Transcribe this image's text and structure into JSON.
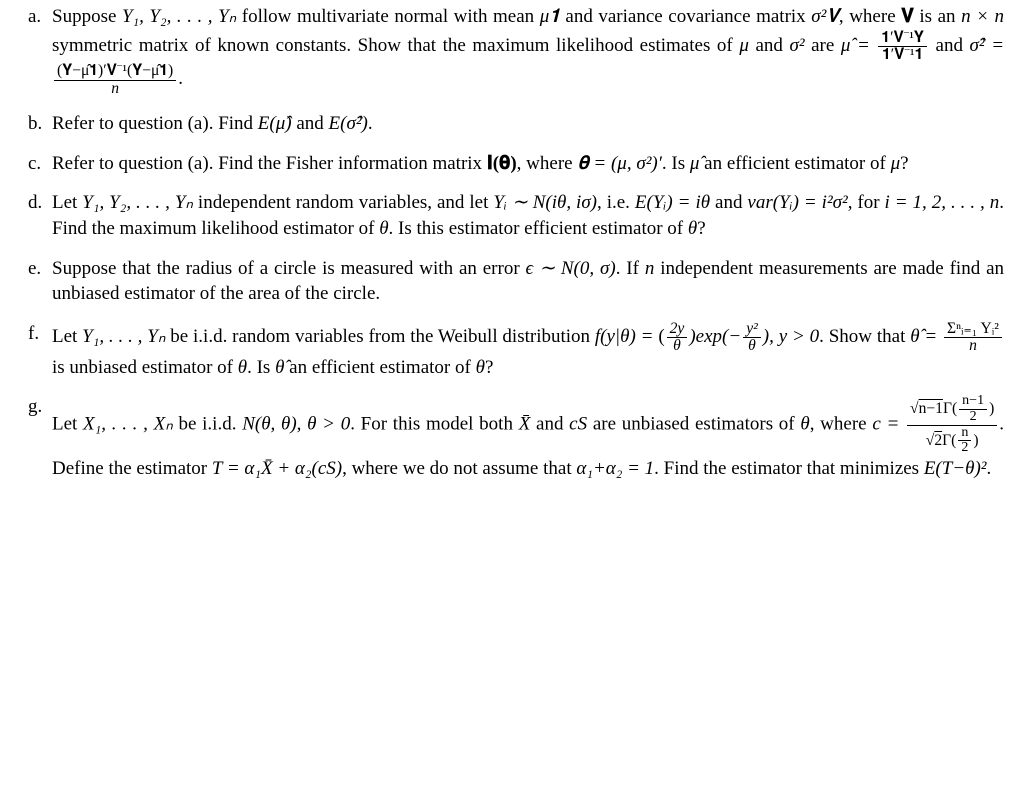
{
  "items": {
    "a": {
      "label": "a.",
      "pre1": "Suppose ",
      "m1": "Y₁, Y₂, . . . , Yₙ",
      "txt1": " follow multivariate normal with mean ",
      "m2": "μ𝟏",
      "txt2": " and variance covariance matrix ",
      "m3": "σ²𝐕",
      "txt3": ", where ",
      "m4": "𝐕",
      "txt4": " is an ",
      "m5": "n × n",
      "txt5": " symmetric matrix of known constants. Show that the maximum likelihood estimates of ",
      "m6": "μ",
      "txt6": " and ",
      "m7": "σ²",
      "txt7": " are ",
      "m8": "μ̂ = ",
      "f1num": "𝟏′𝐕⁻¹𝐘",
      "f1den": "𝟏′𝐕⁻¹𝟏",
      "txt8": " and ",
      "m9": "σ̂² = ",
      "f2num": "(𝐘−μ̂𝟏)′𝐕⁻¹(𝐘−μ̂𝟏)",
      "f2den": "n",
      "txt9": "."
    },
    "b": {
      "label": "b.",
      "txt1": "Refer to question (a). Find ",
      "m1": "E(μ̂)",
      "txt2": " and ",
      "m2": "E(σ̂²)",
      "txt3": "."
    },
    "c": {
      "label": "c.",
      "txt1": "Refer to question (a). Find the Fisher information matrix ",
      "m1": "𝐈(𝛉)",
      "txt2": ", where ",
      "m2": "𝛉 = (μ, σ²)′",
      "txt3": ". Is ",
      "m3": "μ̂",
      "txt4": " an efficient estimator of ",
      "m4": "μ",
      "txt5": "?"
    },
    "d": {
      "label": "d.",
      "txt1": "Let ",
      "m1": "Y₁, Y₂, . . . , Yₙ",
      "txt2": " independent random variables, and let ",
      "m2": "Yᵢ ∼ N(iθ, iσ)",
      "txt3": ", i.e. ",
      "m3": "E(Yᵢ) = iθ",
      "txt4": " and ",
      "m4": "var(Yᵢ) = i²σ²",
      "txt5": ", for ",
      "m5": "i = 1, 2, . . . , n",
      "txt6": ". Find the maximum likelihood estimator of ",
      "m6": "θ",
      "txt7": ". Is this estimator efficient estimator of ",
      "m7": "θ",
      "txt8": "?"
    },
    "e": {
      "label": "e.",
      "txt1": "Suppose that the radius of a circle is measured with an error ",
      "m1": "ϵ ∼ N(0, σ)",
      "txt2": ". If ",
      "m2": "n",
      "txt3": " independent measurements are made find an unbiased estimator of the area of the circle."
    },
    "f": {
      "label": "f.",
      "txt1": "Let ",
      "m1": "Y₁, . . . , Yₙ",
      "txt2": " be i.i.d.  random variables from the Weibull distribution ",
      "m2": "f(y|θ) = ",
      "f1a": "(",
      "f1num": "2y",
      "f1den": "θ",
      "f1b": ")exp(−",
      "f2num": "y²",
      "f2den": "θ",
      "f1c": "), y > 0",
      "txt3": ". Show that ",
      "m3": "θ̂ = ",
      "f3num": "Σⁿᵢ₌₁ Yᵢ²",
      "f3den": "n",
      "txt4": " is unbiased estimator of ",
      "m4": "θ",
      "txt5": ". Is ",
      "m5": "θ̂",
      "txt6": " an efficient estimator of ",
      "m6": "θ",
      "txt7": "?"
    },
    "g": {
      "label": "g.",
      "txt1": "Let ",
      "m1": "X₁, . . . , Xₙ",
      "txt2": " be i.i.d. ",
      "m2": "N(θ, θ), θ > 0",
      "txt3": ". For this model both ",
      "m3": "X̄",
      "txt4": " and ",
      "m4": "cS",
      "txt5": " are unbiased estimators of ",
      "m5": "θ",
      "txt6": ", where ",
      "m6": "c = ",
      "f1num": "√(n−1)Γ((n−1)/2)",
      "f1den": "√2Γ(n/2)",
      "txt7": ". Define the estimator ",
      "m7": "T = α₁X̄ + α₂(cS)",
      "txt8": ", where we do not assume that ",
      "m8": "α₁+α₂ = 1",
      "txt9": ". Find the estimator that minimizes ",
      "m9": "E(T−θ)²",
      "txt10": "."
    }
  }
}
